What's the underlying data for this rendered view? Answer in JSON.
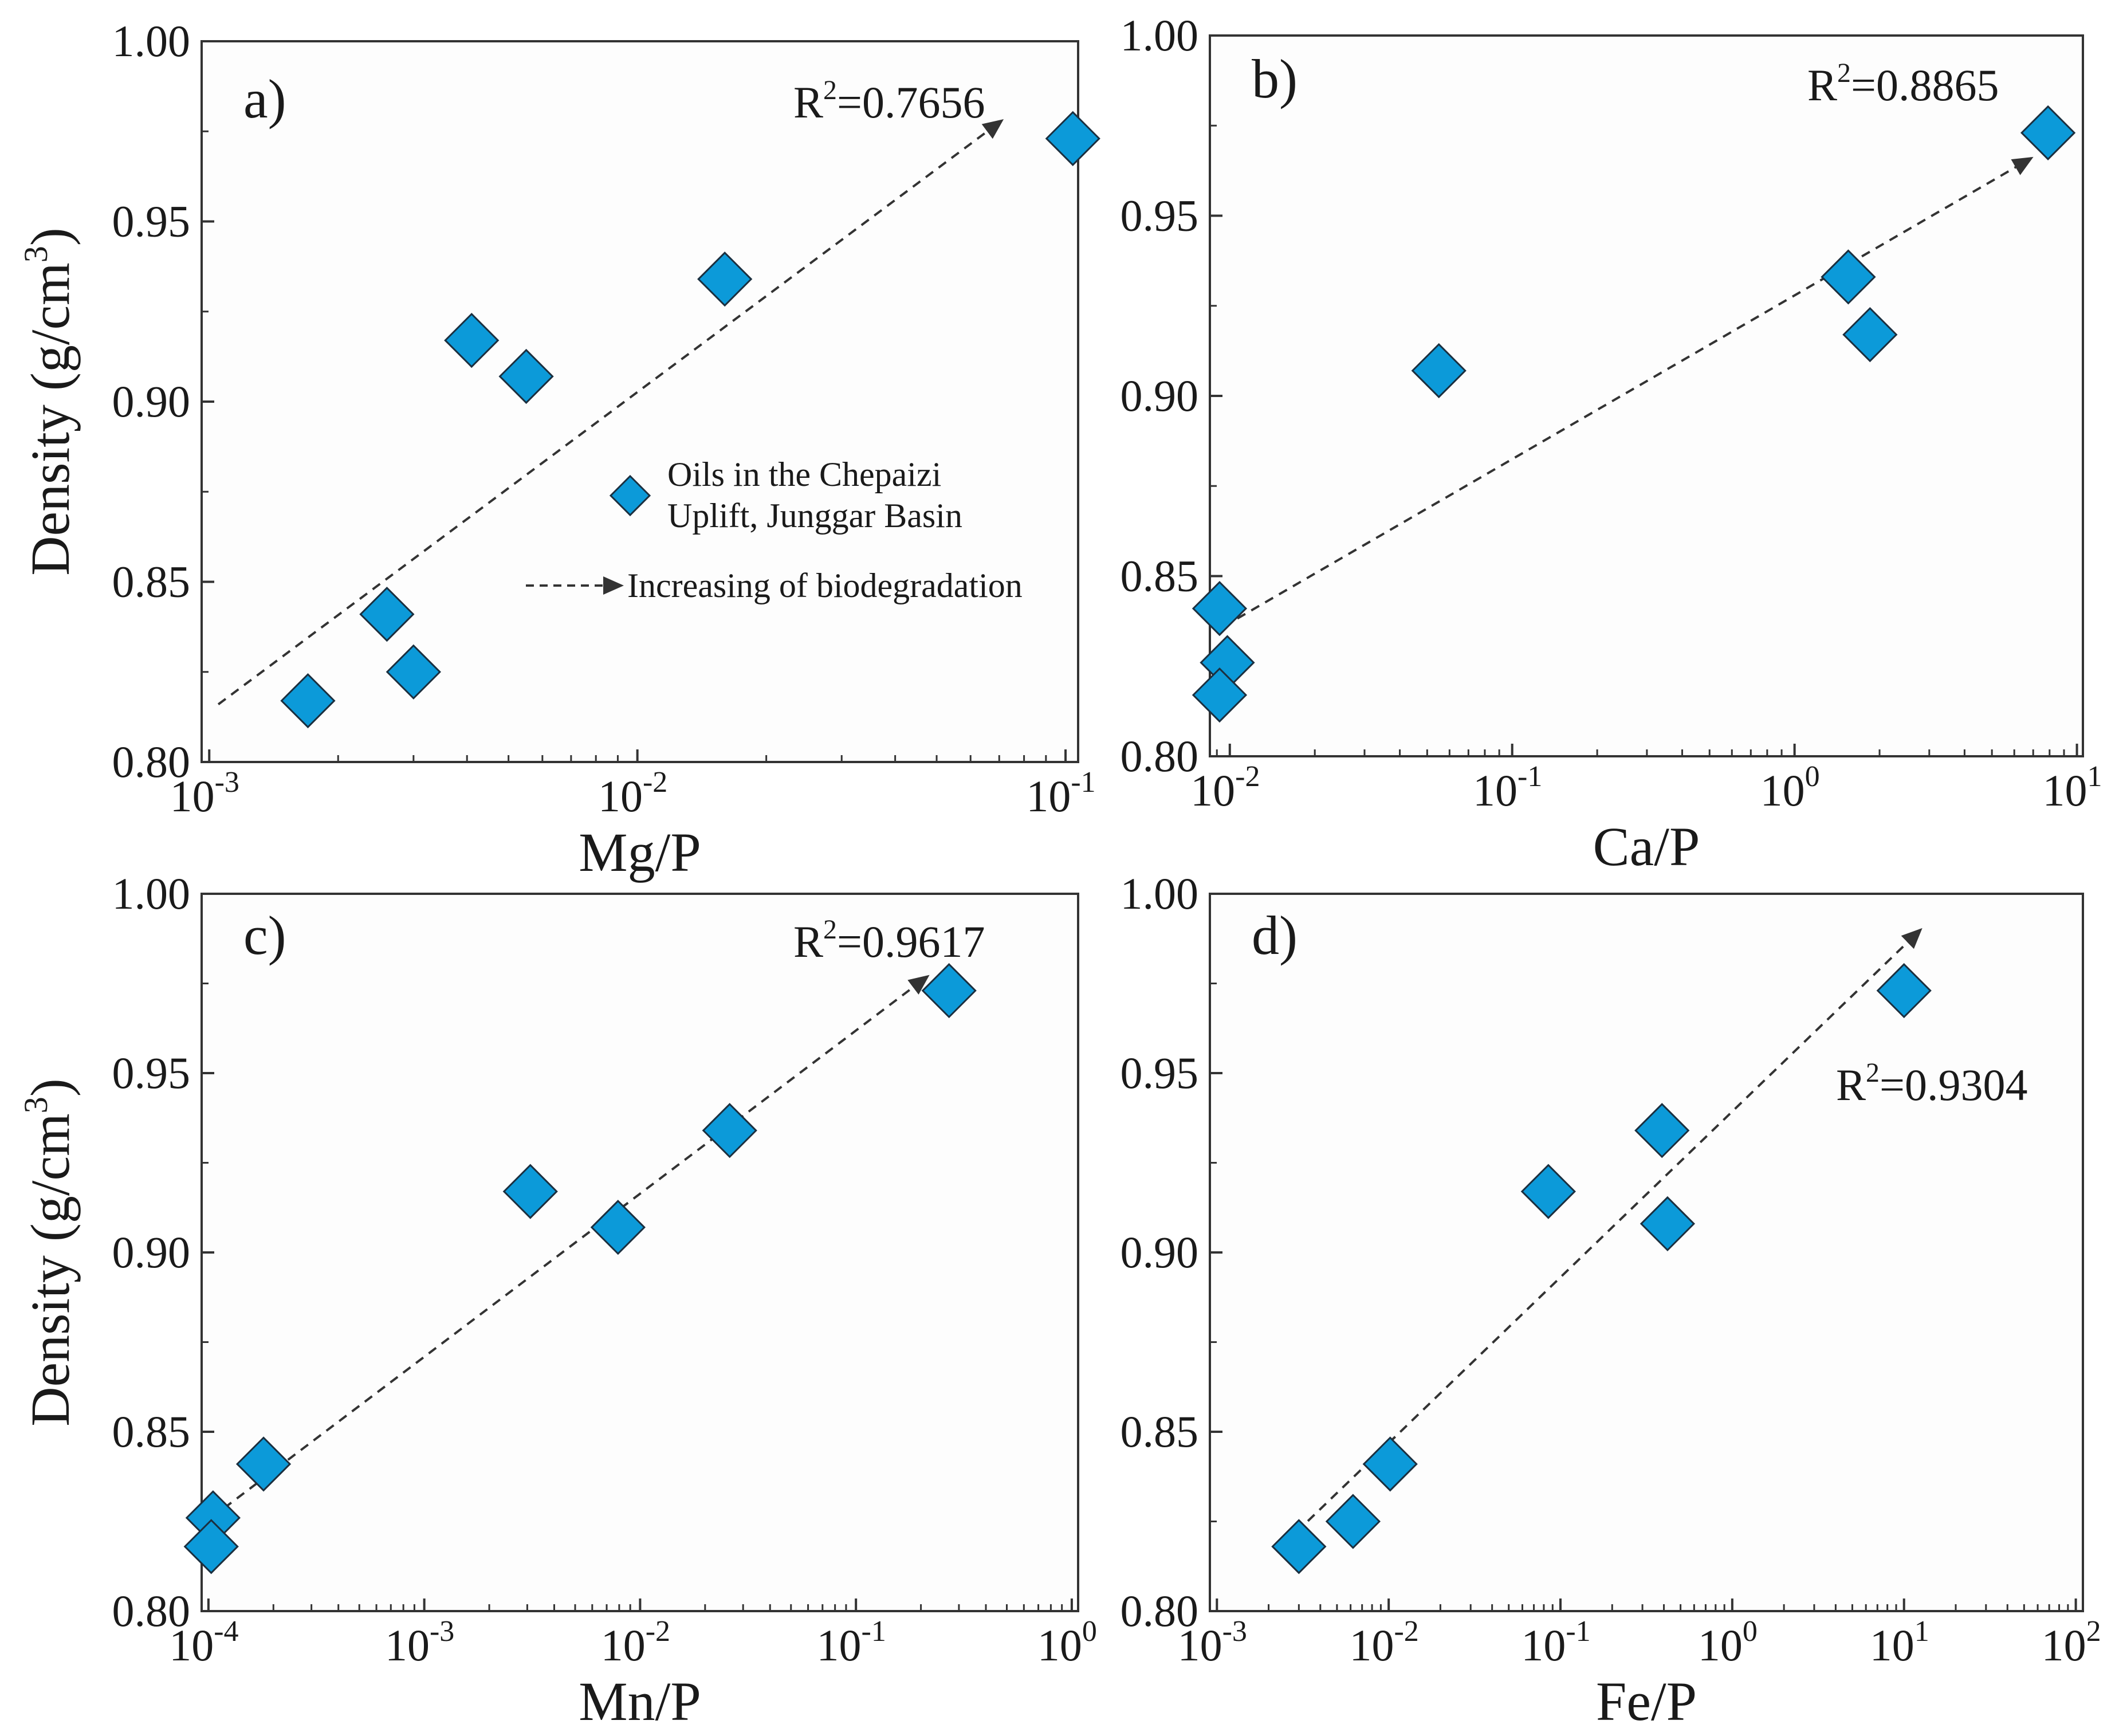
{
  "figure": {
    "shared_ylabel": "Density (g/cm",
    "ylabel_superscript": "3",
    "ylabel_close": ")",
    "r2_prefix": "R",
    "r2_superscript": "2",
    "colors": {
      "marker_fill": "#0C9AD9",
      "marker_stroke": "#1b2f3f",
      "trend": "#333333",
      "axis": "#333333",
      "panel_bg": "#fdfdfd"
    }
  },
  "legend": {
    "marker_label_line1": "Oils in the Chepaizi",
    "marker_label_line2": "Uplift, Junggar Basin",
    "trend_label": "Increasing of biodegradation"
  },
  "chart_data": [
    {
      "type": "scatter",
      "panel": "a)",
      "xlabel": "Mg/P",
      "ylabel": "Density (g/cm3)",
      "x_scale": "log",
      "xlim": [
        0.00096,
        0.107
      ],
      "ylim": [
        0.8,
        1.0
      ],
      "x_ticks": [
        {
          "value": 0.001,
          "base": "10",
          "exp": "-3"
        },
        {
          "value": 0.01,
          "base": "10",
          "exp": "-2"
        },
        {
          "value": 0.1,
          "base": "10",
          "exp": "-1"
        }
      ],
      "y_ticks": [
        {
          "value": 0.8,
          "label": "0.80"
        },
        {
          "value": 0.85,
          "label": "0.85"
        },
        {
          "value": 0.9,
          "label": "0.90"
        },
        {
          "value": 0.95,
          "label": "0.95"
        },
        {
          "value": 1.0,
          "label": "1.00"
        }
      ],
      "points": [
        {
          "x": 0.0017,
          "y": 0.817
        },
        {
          "x": 0.0026,
          "y": 0.841
        },
        {
          "x": 0.003,
          "y": 0.825
        },
        {
          "x": 0.0041,
          "y": 0.917
        },
        {
          "x": 0.0055,
          "y": 0.907
        },
        {
          "x": 0.016,
          "y": 0.934
        },
        {
          "x": 0.104,
          "y": 0.973
        }
      ],
      "trend_line": {
        "from": {
          "x": 0.00105,
          "y": 0.816
        },
        "to": {
          "x": 0.071,
          "y": 0.978
        }
      },
      "r2_value": "=0.7656",
      "legend": "middle-right"
    },
    {
      "type": "scatter",
      "panel": "b)",
      "xlabel": "Ca/P",
      "ylabel": "Density (g/cm3)",
      "x_scale": "log",
      "xlim": [
        0.0085,
        10.5
      ],
      "ylim": [
        0.8,
        1.0
      ],
      "x_ticks": [
        {
          "value": 0.01,
          "base": "10",
          "exp": "-2"
        },
        {
          "value": 0.1,
          "base": "10",
          "exp": "-1"
        },
        {
          "value": 1,
          "base": "10",
          "exp": "0"
        },
        {
          "value": 10,
          "base": "10",
          "exp": "1"
        }
      ],
      "y_ticks": [
        {
          "value": 0.8,
          "label": "0.80"
        },
        {
          "value": 0.85,
          "label": "0.85"
        },
        {
          "value": 0.9,
          "label": "0.90"
        },
        {
          "value": 0.95,
          "label": "0.95"
        },
        {
          "value": 1.0,
          "label": "1.00"
        }
      ],
      "points": [
        {
          "x": 0.0092,
          "y": 0.841
        },
        {
          "x": 0.0098,
          "y": 0.826
        },
        {
          "x": 0.0092,
          "y": 0.817
        },
        {
          "x": 0.055,
          "y": 0.907
        },
        {
          "x": 1.55,
          "y": 0.933
        },
        {
          "x": 1.85,
          "y": 0.917
        },
        {
          "x": 7.9,
          "y": 0.973
        }
      ],
      "trend_line": {
        "from": {
          "x": 0.0095,
          "y": 0.836
        },
        "to": {
          "x": 6.9,
          "y": 0.966
        }
      },
      "r2_value": "=0.8865"
    },
    {
      "type": "scatter",
      "panel": "c)",
      "xlabel": "Mn/P",
      "ylabel": "Density (g/cm3)",
      "x_scale": "log",
      "xlim": [
        9.3e-05,
        1.07
      ],
      "ylim": [
        0.8,
        1.0
      ],
      "x_ticks": [
        {
          "value": 0.0001,
          "base": "10",
          "exp": "-4"
        },
        {
          "value": 0.001,
          "base": "10",
          "exp": "-3"
        },
        {
          "value": 0.01,
          "base": "10",
          "exp": "-2"
        },
        {
          "value": 0.1,
          "base": "10",
          "exp": "-1"
        },
        {
          "value": 1,
          "base": "10",
          "exp": "0"
        }
      ],
      "y_ticks": [
        {
          "value": 0.8,
          "label": "0.80"
        },
        {
          "value": 0.85,
          "label": "0.85"
        },
        {
          "value": 0.9,
          "label": "0.90"
        },
        {
          "value": 0.95,
          "label": "0.95"
        },
        {
          "value": 1.0,
          "label": "1.00"
        }
      ],
      "points": [
        {
          "x": 0.000105,
          "y": 0.826
        },
        {
          "x": 0.000103,
          "y": 0.818
        },
        {
          "x": 0.00018,
          "y": 0.841
        },
        {
          "x": 0.0031,
          "y": 0.917
        },
        {
          "x": 0.0079,
          "y": 0.907
        },
        {
          "x": 0.026,
          "y": 0.934
        },
        {
          "x": 0.27,
          "y": 0.973
        }
      ],
      "trend_line": {
        "from": {
          "x": 0.000103,
          "y": 0.826
        },
        "to": {
          "x": 0.215,
          "y": 0.977
        }
      },
      "r2_value": "=0.9617"
    },
    {
      "type": "scatter",
      "panel": "d)",
      "xlabel": "Fe/P",
      "ylabel": "Density (g/cm3)",
      "x_scale": "log",
      "xlim": [
        0.00091,
        110
      ],
      "ylim": [
        0.8,
        1.0
      ],
      "x_ticks": [
        {
          "value": 0.001,
          "base": "10",
          "exp": "-3"
        },
        {
          "value": 0.01,
          "base": "10",
          "exp": "-2"
        },
        {
          "value": 0.1,
          "base": "10",
          "exp": "-1"
        },
        {
          "value": 1,
          "base": "10",
          "exp": "0"
        },
        {
          "value": 10,
          "base": "10",
          "exp": "1"
        },
        {
          "value": 100,
          "base": "10",
          "exp": "2"
        }
      ],
      "y_ticks": [
        {
          "value": 0.8,
          "label": "0.80"
        },
        {
          "value": 0.85,
          "label": "0.85"
        },
        {
          "value": 0.9,
          "label": "0.90"
        },
        {
          "value": 0.95,
          "label": "0.95"
        },
        {
          "value": 1.0,
          "label": "1.00"
        }
      ],
      "points": [
        {
          "x": 0.003,
          "y": 0.818
        },
        {
          "x": 0.0062,
          "y": 0.825
        },
        {
          "x": 0.0102,
          "y": 0.841
        },
        {
          "x": 0.085,
          "y": 0.917
        },
        {
          "x": 0.39,
          "y": 0.934
        },
        {
          "x": 0.42,
          "y": 0.908
        },
        {
          "x": 10.0,
          "y": 0.973
        }
      ],
      "trend_line": {
        "from": {
          "x": 0.0029,
          "y": 0.822
        },
        "to": {
          "x": 12.5,
          "y": 0.99
        }
      },
      "r2_value": "=0.9304"
    }
  ]
}
